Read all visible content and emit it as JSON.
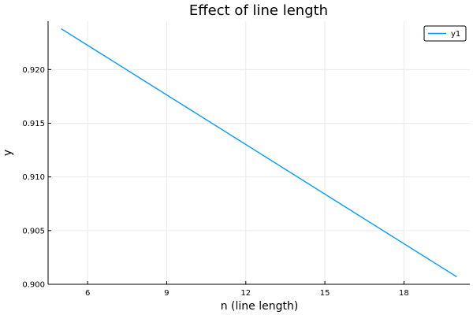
{
  "chart_data": {
    "type": "line",
    "title": "Effect of line length",
    "xlabel": "n (line length)",
    "ylabel": "y",
    "xlim": [
      4.5,
      20.5
    ],
    "ylim": [
      0.9,
      0.9245
    ],
    "x_ticks": [
      6,
      9,
      12,
      15,
      18
    ],
    "y_ticks": [
      0.9,
      0.905,
      0.91,
      0.915,
      0.92
    ],
    "x_tick_labels": [
      "6",
      "9",
      "12",
      "15",
      "18"
    ],
    "y_tick_labels": [
      "0.900",
      "0.905",
      "0.910",
      "0.915",
      "0.920"
    ],
    "grid": true,
    "legend_position": "top-right",
    "series": [
      {
        "name": "y1",
        "color": "#009AFA",
        "x": [
          5,
          20
        ],
        "y": [
          0.9238,
          0.9007
        ]
      }
    ]
  }
}
